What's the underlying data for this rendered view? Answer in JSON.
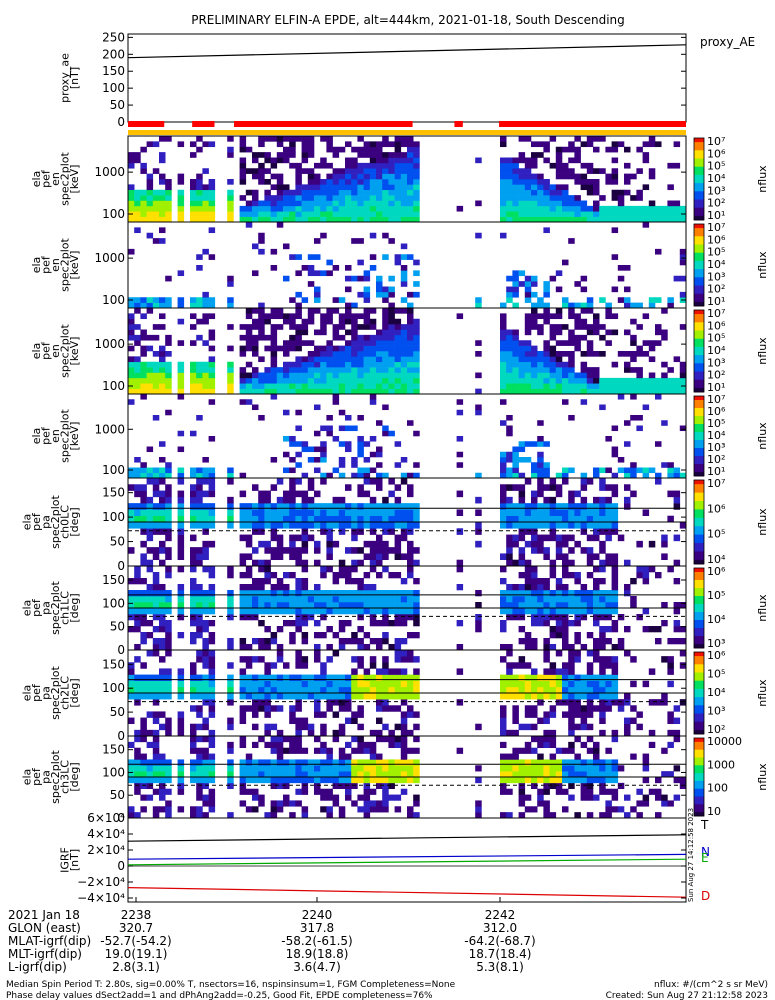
{
  "title": "PRELIMINARY ELFIN-A EPDE, alt=444km, 2021-01-18, South Descending",
  "colors": {
    "trace_T": "#000000",
    "trace_N": "#0000cc",
    "trace_E": "#00aa00",
    "trace_D": "#dd0000",
    "bar_red": "#ff0000",
    "bar_yellow": "#ffc000",
    "palette": [
      "#1a0040",
      "#3a0080",
      "#3020c0",
      "#0050f0",
      "#00a0f0",
      "#00d8c0",
      "#00e060",
      "#a0f000",
      "#ffe000",
      "#ff8000",
      "#f01000"
    ]
  },
  "chart_data": [
    {
      "type": "line",
      "name": "proxy_ae",
      "ylabel_lines": [
        "proxy_ae",
        "[nT]"
      ],
      "ylim": [
        0,
        260
      ],
      "yticks": [
        "250",
        "200",
        "150",
        "100",
        "50",
        "0"
      ],
      "series": [
        {
          "name": "proxy_AE",
          "y_start": 190,
          "y_end": 228
        }
      ]
    },
    {
      "type": "bar",
      "name": "coverage-bars",
      "red_segments": [
        [
          0.0,
          0.065
        ],
        [
          0.115,
          0.155
        ],
        [
          0.19,
          0.51
        ],
        [
          0.585,
          0.6
        ],
        [
          0.665,
          1.0
        ]
      ],
      "yellow_bar_extent": [
        0.0,
        1.0
      ]
    },
    {
      "type": "heatmap",
      "name": "spec-1",
      "ylabel_lines": [
        "ela",
        "pef",
        "en",
        "spec2plot",
        "[keV]"
      ],
      "yscale": "log",
      "yticks": [
        "1000",
        "100"
      ],
      "colorbar": {
        "label": "nflux",
        "labels": [
          "10⁷",
          "10⁶",
          "10⁵",
          "10⁴",
          "10³",
          "10²",
          "10¹"
        ]
      }
    },
    {
      "type": "heatmap",
      "name": "spec-2",
      "ylabel_lines": [
        "ela",
        "pef",
        "en",
        "spec2plot",
        "[keV]"
      ],
      "yscale": "log",
      "yticks": [
        "1000",
        "100"
      ],
      "colorbar": {
        "label": "nflux",
        "labels": [
          "10⁷",
          "10⁶",
          "10⁵",
          "10⁴",
          "10³",
          "10²",
          "10¹"
        ]
      }
    },
    {
      "type": "heatmap",
      "name": "spec-3",
      "ylabel_lines": [
        "ela",
        "pef",
        "en",
        "spec2plot",
        "[keV]"
      ],
      "yscale": "log",
      "yticks": [
        "1000",
        "100"
      ],
      "colorbar": {
        "label": "nflux",
        "labels": [
          "10⁷",
          "10⁶",
          "10⁵",
          "10⁴",
          "10³",
          "10²",
          "10¹"
        ]
      }
    },
    {
      "type": "heatmap",
      "name": "spec-4",
      "ylabel_lines": [
        "ela",
        "pef",
        "en",
        "spec2plot",
        "[keV]"
      ],
      "yscale": "log",
      "yticks": [
        "1000",
        "100"
      ],
      "colorbar": {
        "label": "nflux",
        "labels": [
          "10⁷",
          "10⁶",
          "10⁵",
          "10⁴",
          "10³",
          "10²",
          "10¹"
        ]
      }
    },
    {
      "type": "heatmap",
      "name": "pa-0",
      "ylabel_lines": [
        "ela",
        "pef",
        "pa",
        "spec2plot",
        "ch0LC",
        "[deg]"
      ],
      "ylim": [
        0,
        180
      ],
      "yticks": [
        "150",
        "100",
        "50",
        "0"
      ],
      "colorbar": {
        "label": "nflux",
        "labels": [
          "10⁷",
          "10⁶",
          "10⁵",
          "10⁴"
        ]
      }
    },
    {
      "type": "heatmap",
      "name": "pa-1",
      "ylabel_lines": [
        "ela",
        "pef",
        "pa",
        "spec2plot",
        "ch1LC",
        "[deg]"
      ],
      "ylim": [
        0,
        180
      ],
      "yticks": [
        "150",
        "100",
        "50",
        "0"
      ],
      "colorbar": {
        "label": "nflux",
        "labels": [
          "10⁶",
          "10⁵",
          "10⁴",
          "10³"
        ]
      }
    },
    {
      "type": "heatmap",
      "name": "pa-2",
      "ylabel_lines": [
        "ela",
        "pef",
        "pa",
        "spec2plot",
        "ch2LC",
        "[deg]"
      ],
      "ylim": [
        0,
        180
      ],
      "yticks": [
        "150",
        "100",
        "50",
        "0"
      ],
      "colorbar": {
        "label": "nflux",
        "labels": [
          "10⁶",
          "10⁵",
          "10⁴",
          "10³",
          "10²"
        ]
      }
    },
    {
      "type": "heatmap",
      "name": "pa-3",
      "ylabel_lines": [
        "ela",
        "pef",
        "pa",
        "spec2plot",
        "ch3LC",
        "[deg]"
      ],
      "ylim": [
        0,
        180
      ],
      "yticks": [
        "150",
        "100",
        "50",
        "0"
      ],
      "colorbar": {
        "label": "nflux",
        "labels": [
          "10000",
          "1000",
          "100",
          "10"
        ]
      }
    },
    {
      "type": "line",
      "name": "igrf",
      "ylabel_lines": [
        "IGRF",
        "[nT]"
      ],
      "ylim": [
        -45000,
        60000
      ],
      "yticks": [
        "6×10⁴",
        "4×10⁴",
        "2×10⁴",
        "0",
        "−2×10⁴",
        "−4×10⁴"
      ],
      "series": [
        {
          "name": "T",
          "y_start": 31000,
          "y_end": 39000
        },
        {
          "name": "N",
          "y_start": 8500,
          "y_end": 14500
        },
        {
          "name": "E",
          "y_start": 1500,
          "y_end": 8500
        },
        {
          "name": "D",
          "y_start": -27000,
          "y_end": -39000
        }
      ]
    }
  ],
  "side_stamp": "Sun Aug 27 14:12:58 2023",
  "time_axis": {
    "ticks": [
      "2238",
      "2240",
      "2242"
    ],
    "rows": [
      {
        "label": "2021 Jan 18",
        "values": [
          "2238",
          "2240",
          "2242"
        ]
      },
      {
        "label": "GLON (east)",
        "values": [
          "320.7",
          "317.8",
          "312.0"
        ]
      },
      {
        "label": "MLAT-igrf(dip)",
        "values": [
          "-52.7(-54.2)",
          "-58.2(-61.5)",
          "-64.2(-68.7)"
        ]
      },
      {
        "label": "MLT-igrf(dip)",
        "values": [
          "19.0(19.1)",
          "18.9(18.8)",
          "18.7(18.4)"
        ]
      },
      {
        "label": "L-igrf(dip)",
        "values": [
          "2.8(3.1)",
          "3.6(4.7)",
          "5.3(8.1)"
        ]
      }
    ]
  },
  "footer": {
    "line1": "Median Spin Period T: 2.80s, sig=0.00% T, nsectors=16, nspinsinsum=1, FGM Completeness=None",
    "line2": "Phase delay values dSect2add=1 and dPhAng2add=-0.25, Good Fit, EPDE completeness=76%",
    "units": "nflux: #/(cm^2 s sr MeV)",
    "created": "Created: Sun Aug 27 21:12:58 2023"
  }
}
